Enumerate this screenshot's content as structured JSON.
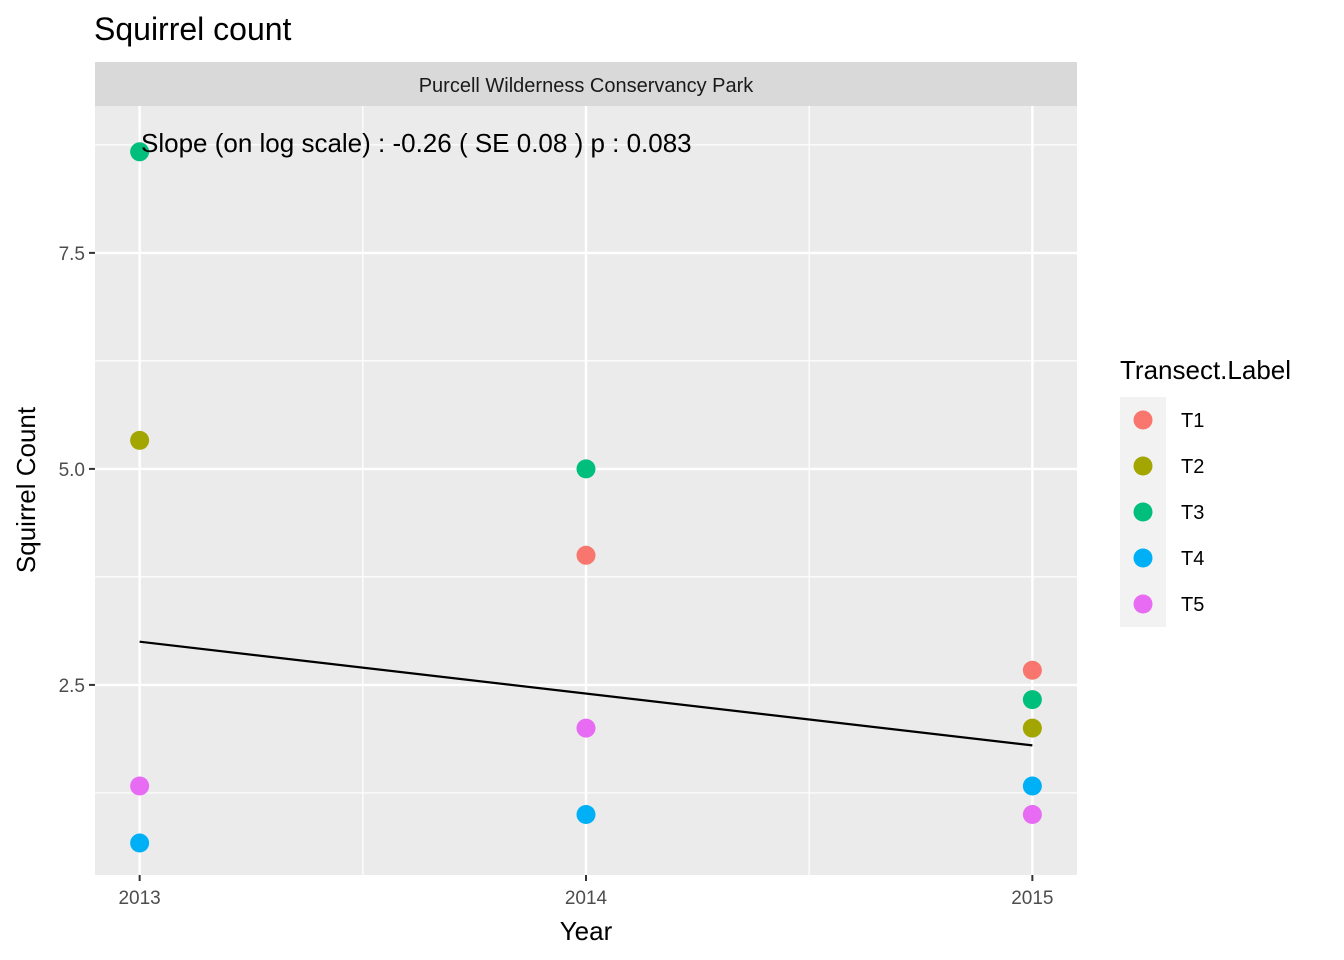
{
  "chart_data": {
    "type": "scatter",
    "title": "Squirrel count",
    "facet_label": "Purcell Wilderness Conservancy Park",
    "xlabel": "Year",
    "ylabel": "Squirrel Count",
    "x_ticks": [
      2013,
      2014,
      2015
    ],
    "y_ticks": [
      2.5,
      5.0,
      7.5
    ],
    "y_tick_labels": [
      "2.5",
      "5.0",
      "7.5"
    ],
    "x_tick_labels": [
      "2013",
      "2014",
      "2015"
    ],
    "xlim": [
      2012.9,
      2015.1
    ],
    "ylim": [
      0.3,
      9.2
    ],
    "grid": true,
    "annotation": "Slope (on log scale) :  -0.26  ( SE  0.08 )  p : 0.083",
    "legend": {
      "title": "Transect.Label",
      "placement": "right"
    },
    "series": [
      {
        "name": "T1",
        "color": "#F8766D",
        "points": [
          [
            2014,
            4.0
          ],
          [
            2015,
            2.67
          ]
        ]
      },
      {
        "name": "T2",
        "color": "#A3A500",
        "points": [
          [
            2013,
            5.33
          ],
          [
            2015,
            2.0
          ]
        ]
      },
      {
        "name": "T3",
        "color": "#00BF7D",
        "points": [
          [
            2013,
            8.67
          ],
          [
            2014,
            5.0
          ],
          [
            2015,
            2.33
          ]
        ]
      },
      {
        "name": "T4",
        "color": "#00B0F6",
        "points": [
          [
            2013,
            0.67
          ],
          [
            2014,
            1.0
          ],
          [
            2015,
            1.33
          ]
        ]
      },
      {
        "name": "T5",
        "color": "#E76BF3",
        "points": [
          [
            2013,
            1.33
          ],
          [
            2014,
            2.0
          ],
          [
            2015,
            1.0
          ]
        ]
      }
    ],
    "trend_line": {
      "x": [
        2013,
        2015
      ],
      "y": [
        3.0,
        1.8
      ],
      "color": "#000000"
    }
  }
}
